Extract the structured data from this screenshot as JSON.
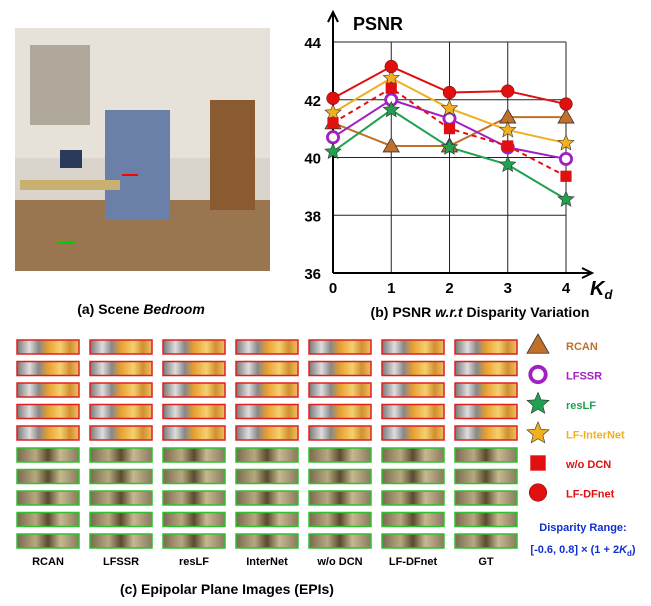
{
  "chart_data": {
    "type": "line",
    "ylabel": "PSNR",
    "xlabel": {
      "main": "K",
      "sub": "d"
    },
    "x": [
      0,
      1,
      2,
      3,
      4
    ],
    "xlim": [
      0,
      4
    ],
    "xticks": [
      0,
      1,
      2,
      3,
      4
    ],
    "ylim": [
      36,
      44
    ],
    "yticks": [
      36,
      38,
      40,
      42,
      44
    ],
    "grid": true,
    "series": [
      {
        "name": "RCAN",
        "color": "#c0702a",
        "marker": "triangle",
        "values": [
          41.2,
          40.4,
          40.4,
          41.4,
          41.4
        ]
      },
      {
        "name": "LFSSR",
        "color": "#a020c0",
        "marker": "ring",
        "values": [
          40.7,
          42.0,
          41.35,
          40.35,
          39.95
        ]
      },
      {
        "name": "resLF",
        "color": "#20a050",
        "marker": "star",
        "values": [
          40.2,
          41.65,
          40.35,
          39.75,
          38.55
        ]
      },
      {
        "name": "LF-InterNet",
        "color": "#f0b020",
        "marker": "star",
        "values": [
          41.55,
          42.75,
          41.7,
          40.95,
          40.5
        ]
      },
      {
        "name": "w/o DCN",
        "color": "#e01010",
        "marker": "square",
        "dash": true,
        "values": [
          41.2,
          42.4,
          41.0,
          40.4,
          39.35
        ]
      },
      {
        "name": "LF-DFnet",
        "color": "#e01010",
        "marker": "circle",
        "values": [
          42.05,
          43.15,
          42.25,
          42.3,
          41.85
        ]
      }
    ]
  },
  "figure": {
    "caption_a": {
      "prefix": "(a) Scene ",
      "italic": "Bedroom"
    },
    "caption_b": {
      "prefix": "(b) PSNR ",
      "italic": "w.r.t",
      "suffix": " Disparity Variation"
    },
    "caption_c": "(c) Epipolar Plane Images (EPIs)",
    "epi_labels": [
      "RCAN",
      "LFSSR",
      "resLF",
      "InterNet",
      "w/o DCN",
      "LF-DFnet",
      "GT"
    ],
    "disparity_range": {
      "title": "Disparity Range:",
      "expr": "[-0.6, 0.8] × (1 + 2",
      "k": "K",
      "sub": "d",
      "close": ")"
    }
  }
}
